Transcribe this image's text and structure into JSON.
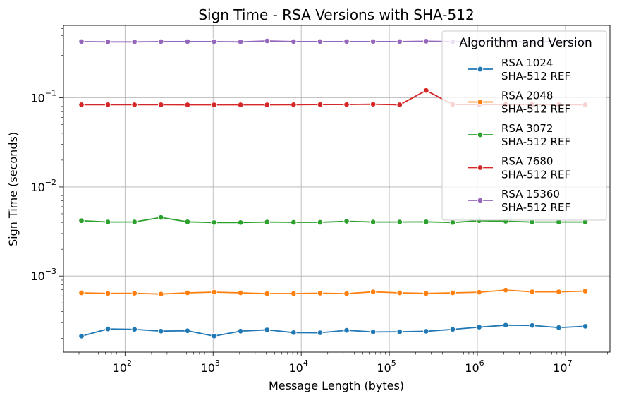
{
  "chart_data": {
    "type": "line",
    "title": "Sign Time - RSA Versions with SHA-512",
    "xlabel": "Message Length (bytes)",
    "ylabel": "Sign Time (seconds)",
    "xscale": "log",
    "yscale": "log",
    "xlim": [
      20,
      32000000
    ],
    "ylim": [
      0.00014,
      0.65
    ],
    "x_ticks": [
      {
        "value": 100,
        "label": "10^2",
        "base": "10",
        "exp": "2"
      },
      {
        "value": 1000,
        "label": "10^3",
        "base": "10",
        "exp": "3"
      },
      {
        "value": 10000,
        "label": "10^4",
        "base": "10",
        "exp": "4"
      },
      {
        "value": 100000,
        "label": "10^5",
        "base": "10",
        "exp": "5"
      },
      {
        "value": 1000000,
        "label": "10^6",
        "base": "10",
        "exp": "6"
      },
      {
        "value": 10000000,
        "label": "10^7",
        "base": "10",
        "exp": "7"
      }
    ],
    "y_ticks": [
      {
        "value": 0.001,
        "label": "10^-3",
        "base": "10",
        "exp": "−3"
      },
      {
        "value": 0.01,
        "label": "10^-2",
        "base": "10",
        "exp": "−2"
      },
      {
        "value": 0.1,
        "label": "10^-1",
        "base": "10",
        "exp": "−1"
      }
    ],
    "grid": true,
    "legend": {
      "title": "Algorithm and Version",
      "position": "top-right"
    },
    "x": [
      32,
      64,
      128,
      256,
      512,
      1024,
      2048,
      4096,
      8192,
      16384,
      32768,
      65536,
      131072,
      262144,
      524288,
      1048576,
      2097152,
      4194304,
      8388608,
      16777216
    ],
    "series": [
      {
        "name": "RSA 1024\nSHA-512 REF",
        "name_lines": [
          "RSA 1024",
          "SHA-512 REF"
        ],
        "color": "#1f77b4",
        "values": [
          0.000212,
          0.000255,
          0.000252,
          0.000241,
          0.000243,
          0.000212,
          0.000241,
          0.000249,
          0.000232,
          0.000231,
          0.000246,
          0.000236,
          0.000237,
          0.00024,
          0.000252,
          0.000267,
          0.000281,
          0.000279,
          0.000264,
          0.000273
        ]
      },
      {
        "name": "RSA 2048\nSHA-512 REF",
        "name_lines": [
          "RSA 2048",
          "SHA-512 REF"
        ],
        "color": "#ff7f0e",
        "values": [
          0.000648,
          0.000638,
          0.00064,
          0.000628,
          0.000648,
          0.00066,
          0.000648,
          0.000635,
          0.000636,
          0.000642,
          0.000635,
          0.000665,
          0.000648,
          0.000638,
          0.000648,
          0.000658,
          0.000695,
          0.000665,
          0.000665,
          0.000678
        ]
      },
      {
        "name": "RSA 3072\nSHA-512 REF",
        "name_lines": [
          "RSA 3072",
          "SHA-512 REF"
        ],
        "color": "#2ca02c",
        "values": [
          0.00418,
          0.00404,
          0.00405,
          0.00455,
          0.00406,
          0.00399,
          0.00399,
          0.00404,
          0.00401,
          0.00401,
          0.00412,
          0.00404,
          0.00404,
          0.00406,
          0.00399,
          0.00418,
          0.00412,
          0.00404,
          0.00404,
          0.00404
        ]
      },
      {
        "name": "RSA 7680\nSHA-512 REF",
        "name_lines": [
          "RSA 7680",
          "SHA-512 REF"
        ],
        "color": "#d62728",
        "values": [
          0.0838,
          0.0838,
          0.0838,
          0.0838,
          0.0835,
          0.0835,
          0.0835,
          0.0835,
          0.0838,
          0.0842,
          0.0842,
          0.0848,
          0.0835,
          0.121,
          0.0842,
          0.0842,
          0.0842,
          0.0842,
          0.0842,
          0.0835
        ]
      },
      {
        "name": "RSA 15360\nSHA-512 REF",
        "name_lines": [
          "RSA 15360",
          "SHA-512 REF"
        ],
        "color": "#9467bd",
        "values": [
          0.428,
          0.425,
          0.425,
          0.428,
          0.428,
          0.428,
          0.425,
          0.435,
          0.428,
          0.428,
          0.428,
          0.428,
          0.428,
          0.432,
          0.428,
          0.428,
          0.428,
          0.428,
          0.428,
          0.428
        ]
      }
    ]
  }
}
